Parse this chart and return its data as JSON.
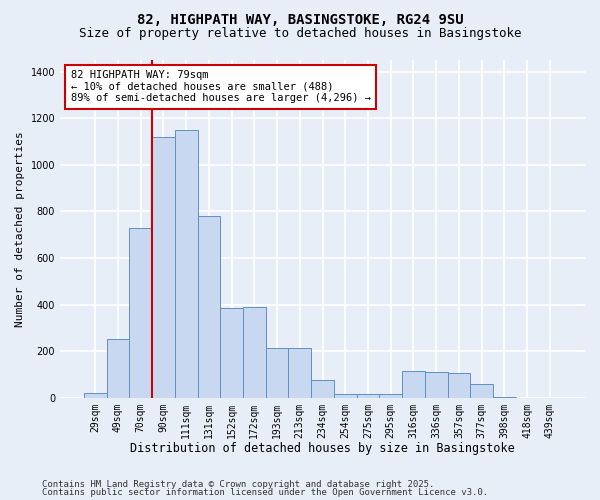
{
  "title_line1": "82, HIGHPATH WAY, BASINGSTOKE, RG24 9SU",
  "title_line2": "Size of property relative to detached houses in Basingstoke",
  "xlabel": "Distribution of detached houses by size in Basingstoke",
  "ylabel": "Number of detached properties",
  "categories": [
    "29sqm",
    "49sqm",
    "70sqm",
    "90sqm",
    "111sqm",
    "131sqm",
    "152sqm",
    "172sqm",
    "193sqm",
    "213sqm",
    "234sqm",
    "254sqm",
    "275sqm",
    "295sqm",
    "316sqm",
    "336sqm",
    "357sqm",
    "377sqm",
    "398sqm",
    "418sqm",
    "439sqm"
  ],
  "values": [
    20,
    250,
    730,
    1120,
    1150,
    780,
    385,
    390,
    215,
    215,
    75,
    15,
    15,
    15,
    115,
    110,
    105,
    60,
    5,
    0,
    0
  ],
  "bar_color": "#c8d8f0",
  "bar_edge_color": "#6090c0",
  "annotation_text": "82 HIGHPATH WAY: 79sqm\n← 10% of detached houses are smaller (488)\n89% of semi-detached houses are larger (4,296) →",
  "vline_x": 2.5,
  "vline_color": "#cc0000",
  "box_color": "#cc0000",
  "ylim": [
    0,
    1450
  ],
  "yticks": [
    0,
    200,
    400,
    600,
    800,
    1000,
    1200,
    1400
  ],
  "footer1": "Contains HM Land Registry data © Crown copyright and database right 2025.",
  "footer2": "Contains public sector information licensed under the Open Government Licence v3.0.",
  "plot_bg_color": "#e8eef8",
  "fig_bg_color": "#e8eef8",
  "grid_color": "#ffffff",
  "title_fontsize": 10,
  "subtitle_fontsize": 9,
  "tick_fontsize": 7,
  "ylabel_fontsize": 8,
  "xlabel_fontsize": 8.5,
  "annotation_fontsize": 7.5,
  "footer_fontsize": 6.5
}
